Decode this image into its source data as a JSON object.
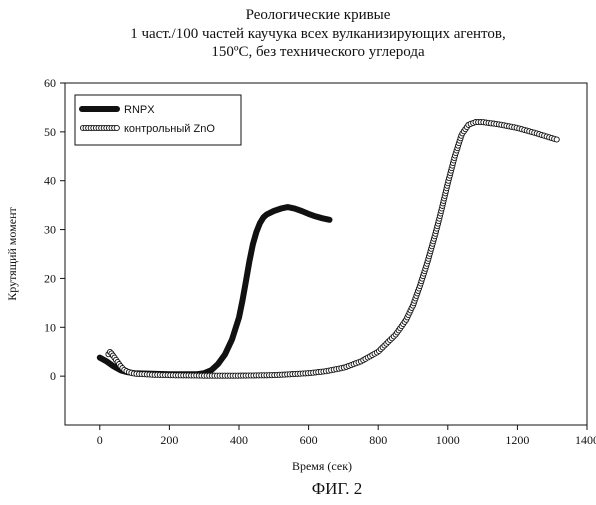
{
  "figure_label": "ФИГ. 2",
  "chart_data": {
    "type": "line",
    "title_lines": [
      "Реологические кривые",
      "1 част./100 частей каучука всех вулканизирующих агентов,",
      "150ºC, без технического углерода"
    ],
    "xlabel": "Время (сек)",
    "ylabel": "Крутящий момент",
    "xlim": [
      -100,
      1400
    ],
    "ylim": [
      -10,
      60
    ],
    "x_ticks": [
      0,
      200,
      400,
      600,
      800,
      1000,
      1200,
      1400
    ],
    "y_ticks": [
      0,
      10,
      20,
      30,
      40,
      50,
      60
    ],
    "grid": false,
    "legend_position": "top-left",
    "series": [
      {
        "name": "RNPX",
        "style": "thick-solid",
        "color": "#111111",
        "x": [
          0,
          20,
          40,
          60,
          80,
          100,
          150,
          200,
          250,
          280,
          300,
          320,
          340,
          360,
          380,
          400,
          410,
          420,
          430,
          440,
          450,
          460,
          470,
          480,
          500,
          520,
          540,
          560,
          580,
          600,
          620,
          640,
          660
        ],
        "y": [
          3.8,
          3.0,
          2.0,
          1.2,
          0.8,
          0.6,
          0.5,
          0.4,
          0.4,
          0.4,
          0.6,
          1.2,
          2.5,
          4.5,
          7.5,
          12.0,
          15.5,
          19.5,
          23.5,
          27.0,
          29.5,
          31.3,
          32.5,
          33.1,
          33.8,
          34.3,
          34.6,
          34.3,
          33.8,
          33.2,
          32.7,
          32.3,
          32.0
        ]
      },
      {
        "name": "контрольный ZnO",
        "style": "open-circle-chain",
        "color": "#111111",
        "x": [
          25,
          30,
          40,
          50,
          60,
          70,
          80,
          100,
          150,
          200,
          300,
          400,
          500,
          600,
          650,
          700,
          750,
          800,
          850,
          880,
          900,
          920,
          940,
          960,
          980,
          1000,
          1020,
          1040,
          1060,
          1080,
          1100,
          1150,
          1200,
          1250,
          1300,
          1320
        ],
        "y": [
          4.5,
          5.0,
          4.0,
          3.0,
          2.0,
          1.3,
          0.9,
          0.5,
          0.3,
          0.2,
          0.1,
          0.1,
          0.2,
          0.6,
          1.0,
          1.7,
          3.0,
          5.0,
          8.5,
          11.5,
          14.5,
          18.5,
          23.0,
          28.0,
          33.5,
          39.5,
          45.0,
          49.5,
          51.5,
          52.0,
          52.0,
          51.5,
          50.8,
          49.8,
          48.7,
          48.3
        ]
      }
    ]
  }
}
